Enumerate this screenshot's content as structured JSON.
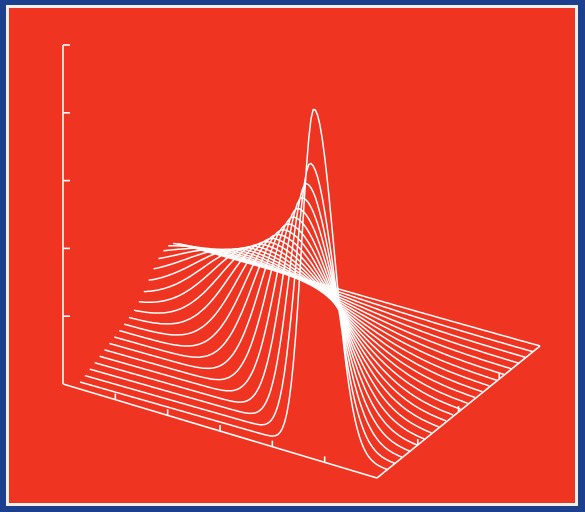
{
  "colors": {
    "background": "#ef3422",
    "frame": "#1c3f8e",
    "line": "#ffffff"
  },
  "chart_data": {
    "type": "line",
    "style": "3d-waterfall",
    "title": "",
    "xlabel": "",
    "ylabel": "",
    "zlabel": "",
    "grid": false,
    "legend": "none",
    "curve_count": 22,
    "series_description_param": [
      0,
      1
    ],
    "x_ticks": 6,
    "z_ticks": 5
  }
}
